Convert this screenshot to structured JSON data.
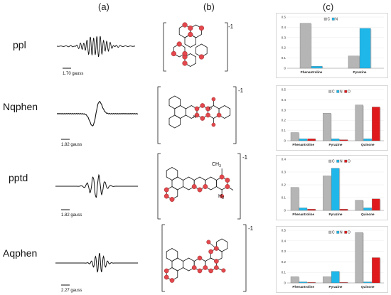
{
  "column_labels": [
    "(a)",
    "(b)",
    "(c)"
  ],
  "rows": [
    {
      "label": "ppl",
      "scale": "1.70 gauss",
      "charge": "-1"
    },
    {
      "label": "Nqphen",
      "scale": "1.82 gauss",
      "charge": "-1"
    },
    {
      "label": "pptd",
      "scale": "1.82 gauss",
      "charge": "-1"
    },
    {
      "label": "Aqphen",
      "scale": "2.27 gauss",
      "charge": "-1"
    }
  ],
  "structure_text": {
    "ch3": "CH",
    "ch3_sub": "3",
    "h3": "H",
    "h3_sub": "3",
    "n": "N",
    "o": "O"
  },
  "colors": {
    "C": "#b5b5b5",
    "N": "#1fb7ea",
    "O": "#e0191c",
    "atom": "#e2484d"
  },
  "chart_data": [
    {
      "type": "bar",
      "categories": [
        "Phenantroline",
        "Pyrazine"
      ],
      "series": [
        {
          "name": "C",
          "values": [
            0.44,
            0.12
          ]
        },
        {
          "name": "N",
          "values": [
            0.02,
            0.39
          ]
        }
      ],
      "yticks": [
        "0",
        "0.1",
        "0.2",
        "0.3",
        "0.4",
        "0.5"
      ],
      "ylim": [
        0,
        0.5
      ]
    },
    {
      "type": "bar",
      "categories": [
        "Phenantroline",
        "Pyrazine",
        "Quinone"
      ],
      "series": [
        {
          "name": "C",
          "values": [
            0.08,
            0.27,
            0.35
          ]
        },
        {
          "name": "N",
          "values": [
            0.02,
            0.02,
            0.02
          ]
        },
        {
          "name": "O",
          "values": [
            0.02,
            0.01,
            0.33
          ]
        }
      ],
      "yticks": [
        "0",
        "0.1",
        "0.2",
        "0.3",
        "0.4",
        "0.5"
      ],
      "ylim": [
        0,
        0.5
      ]
    },
    {
      "type": "bar",
      "categories": [
        "Phenantroline",
        "Pyrazine",
        "Quinone"
      ],
      "series": [
        {
          "name": "C",
          "values": [
            0.18,
            0.27,
            0.08
          ]
        },
        {
          "name": "N",
          "values": [
            0.02,
            0.33,
            0.02
          ]
        },
        {
          "name": "O",
          "values": [
            0.01,
            0.01,
            0.09
          ]
        }
      ],
      "yticks": [
        "0",
        "0.1",
        "0.2",
        "0.3",
        "0.4"
      ],
      "ylim": [
        0,
        0.4
      ]
    },
    {
      "type": "bar",
      "categories": [
        "Phenantroline",
        "Pyrazine",
        "Quinone"
      ],
      "series": [
        {
          "name": "C",
          "values": [
            0.06,
            0.06,
            0.48
          ]
        },
        {
          "name": "N",
          "values": [
            0.01,
            0.11,
            0.01
          ]
        },
        {
          "name": "O",
          "values": [
            0.005,
            0.005,
            0.24
          ]
        }
      ],
      "yticks": [
        "0",
        "0.1",
        "0.2",
        "0.3",
        "0.4",
        "0.5"
      ],
      "ylim": [
        0,
        0.5
      ]
    }
  ]
}
